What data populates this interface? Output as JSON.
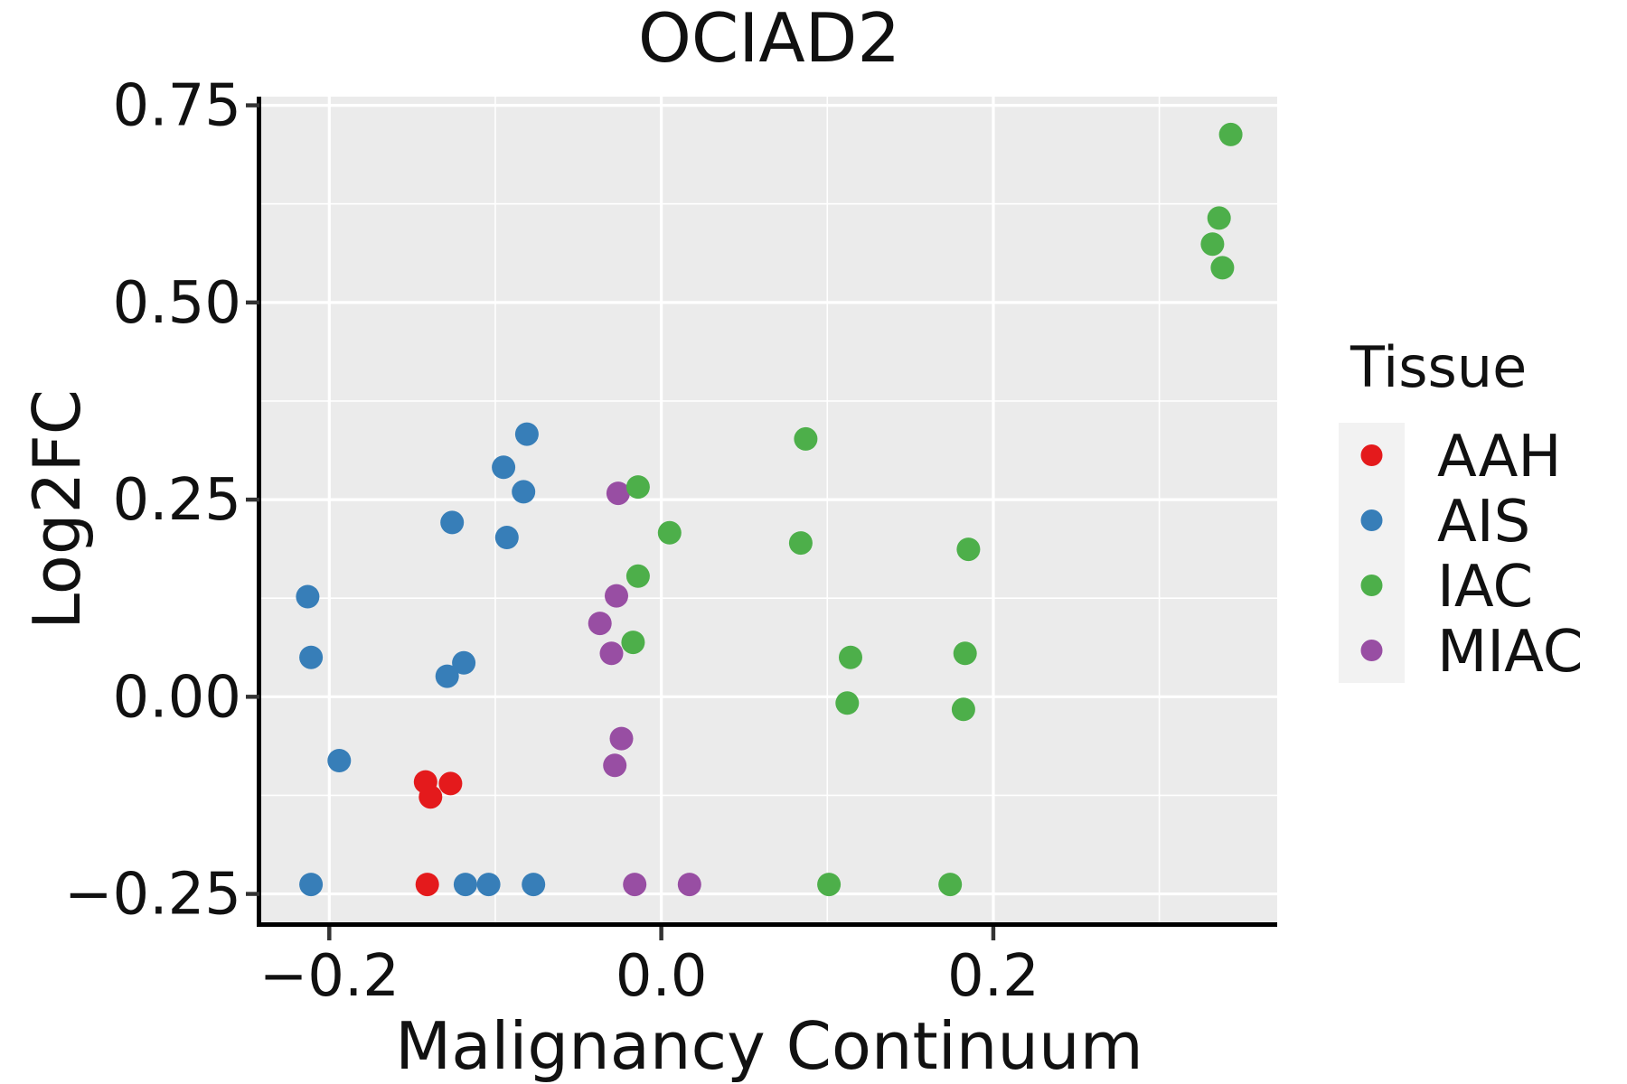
{
  "title": "OCIAD2",
  "axes": {
    "x": {
      "label": "Malignancy Continuum",
      "tick_labels": [
        "−0.2",
        "0.0",
        "0.2"
      ],
      "tick_values": [
        -0.2,
        0.0,
        0.2
      ],
      "minor_values": [
        -0.1,
        0.1,
        0.3
      ],
      "range": [
        -0.241,
        0.371
      ]
    },
    "y": {
      "label": "Log2FC",
      "tick_labels": [
        "−0.25",
        "0.00",
        "0.25",
        "0.50",
        "0.75"
      ],
      "tick_values": [
        -0.25,
        0.0,
        0.25,
        0.5,
        0.75
      ],
      "minor_values": [
        -0.125,
        0.125,
        0.375,
        0.625
      ],
      "range": [
        -0.286,
        0.761
      ]
    }
  },
  "legend": {
    "title": "Tissue",
    "items": [
      {
        "label": "AAH",
        "color": "#E41A1C"
      },
      {
        "label": "AIS",
        "color": "#377EB8"
      },
      {
        "label": "IAC",
        "color": "#4DAF4A"
      },
      {
        "label": "MIAC",
        "color": "#984EA3"
      }
    ]
  },
  "style": {
    "plot_bg": "#EBEBEB",
    "grid_color": "#FFFFFF",
    "legend_key_bg": "#F2F2F2",
    "spine_color": "#000000",
    "tick_color": "#333333",
    "text_color": "#111111"
  },
  "chart_data": {
    "type": "scatter",
    "title": "OCIAD2",
    "xlabel": "Malignancy Continuum",
    "ylabel": "Log2FC",
    "xlim": [
      -0.241,
      0.371
    ],
    "ylim": [
      -0.286,
      0.761
    ],
    "x_ticks": [
      -0.2,
      0.0,
      0.2
    ],
    "y_ticks": [
      -0.25,
      0.0,
      0.25,
      0.5,
      0.75
    ],
    "grid": "white major and minor gridlines on gray panel",
    "legend_position": "right",
    "point_radius_px": 13,
    "series": [
      {
        "name": "AAH",
        "color": "#E41A1C",
        "points": [
          [
            -0.142,
            -0.108
          ],
          [
            -0.139,
            -0.127
          ],
          [
            -0.127,
            -0.11
          ],
          [
            -0.141,
            -0.238
          ]
        ]
      },
      {
        "name": "AIS",
        "color": "#377EB8",
        "points": [
          [
            -0.213,
            0.127
          ],
          [
            -0.211,
            0.05
          ],
          [
            -0.194,
            -0.081
          ],
          [
            -0.211,
            -0.238
          ],
          [
            -0.126,
            0.221
          ],
          [
            -0.129,
            0.026
          ],
          [
            -0.119,
            0.043
          ],
          [
            -0.118,
            -0.238
          ],
          [
            -0.104,
            -0.238
          ],
          [
            -0.077,
            -0.238
          ],
          [
            -0.081,
            0.333
          ],
          [
            -0.095,
            0.291
          ],
          [
            -0.083,
            0.26
          ],
          [
            -0.093,
            0.202
          ]
        ]
      },
      {
        "name": "IAC",
        "color": "#4DAF4A",
        "points": [
          [
            0.343,
            0.713
          ],
          [
            0.336,
            0.607
          ],
          [
            0.332,
            0.574
          ],
          [
            0.338,
            0.544
          ],
          [
            0.087,
            0.327
          ],
          [
            0.084,
            0.195
          ],
          [
            0.185,
            0.187
          ],
          [
            0.114,
            0.05
          ],
          [
            0.183,
            0.055
          ],
          [
            0.112,
            -0.008
          ],
          [
            0.182,
            -0.016
          ],
          [
            -0.014,
            0.266
          ],
          [
            0.005,
            0.208
          ],
          [
            -0.014,
            0.153
          ],
          [
            -0.017,
            0.069
          ],
          [
            0.101,
            -0.238
          ],
          [
            0.174,
            -0.238
          ]
        ]
      },
      {
        "name": "MIAC",
        "color": "#984EA3",
        "points": [
          [
            -0.026,
            0.258
          ],
          [
            -0.027,
            0.128
          ],
          [
            -0.037,
            0.093
          ],
          [
            -0.03,
            0.055
          ],
          [
            -0.024,
            -0.053
          ],
          [
            -0.028,
            -0.087
          ],
          [
            -0.016,
            -0.238
          ],
          [
            0.017,
            -0.238
          ]
        ]
      }
    ]
  }
}
